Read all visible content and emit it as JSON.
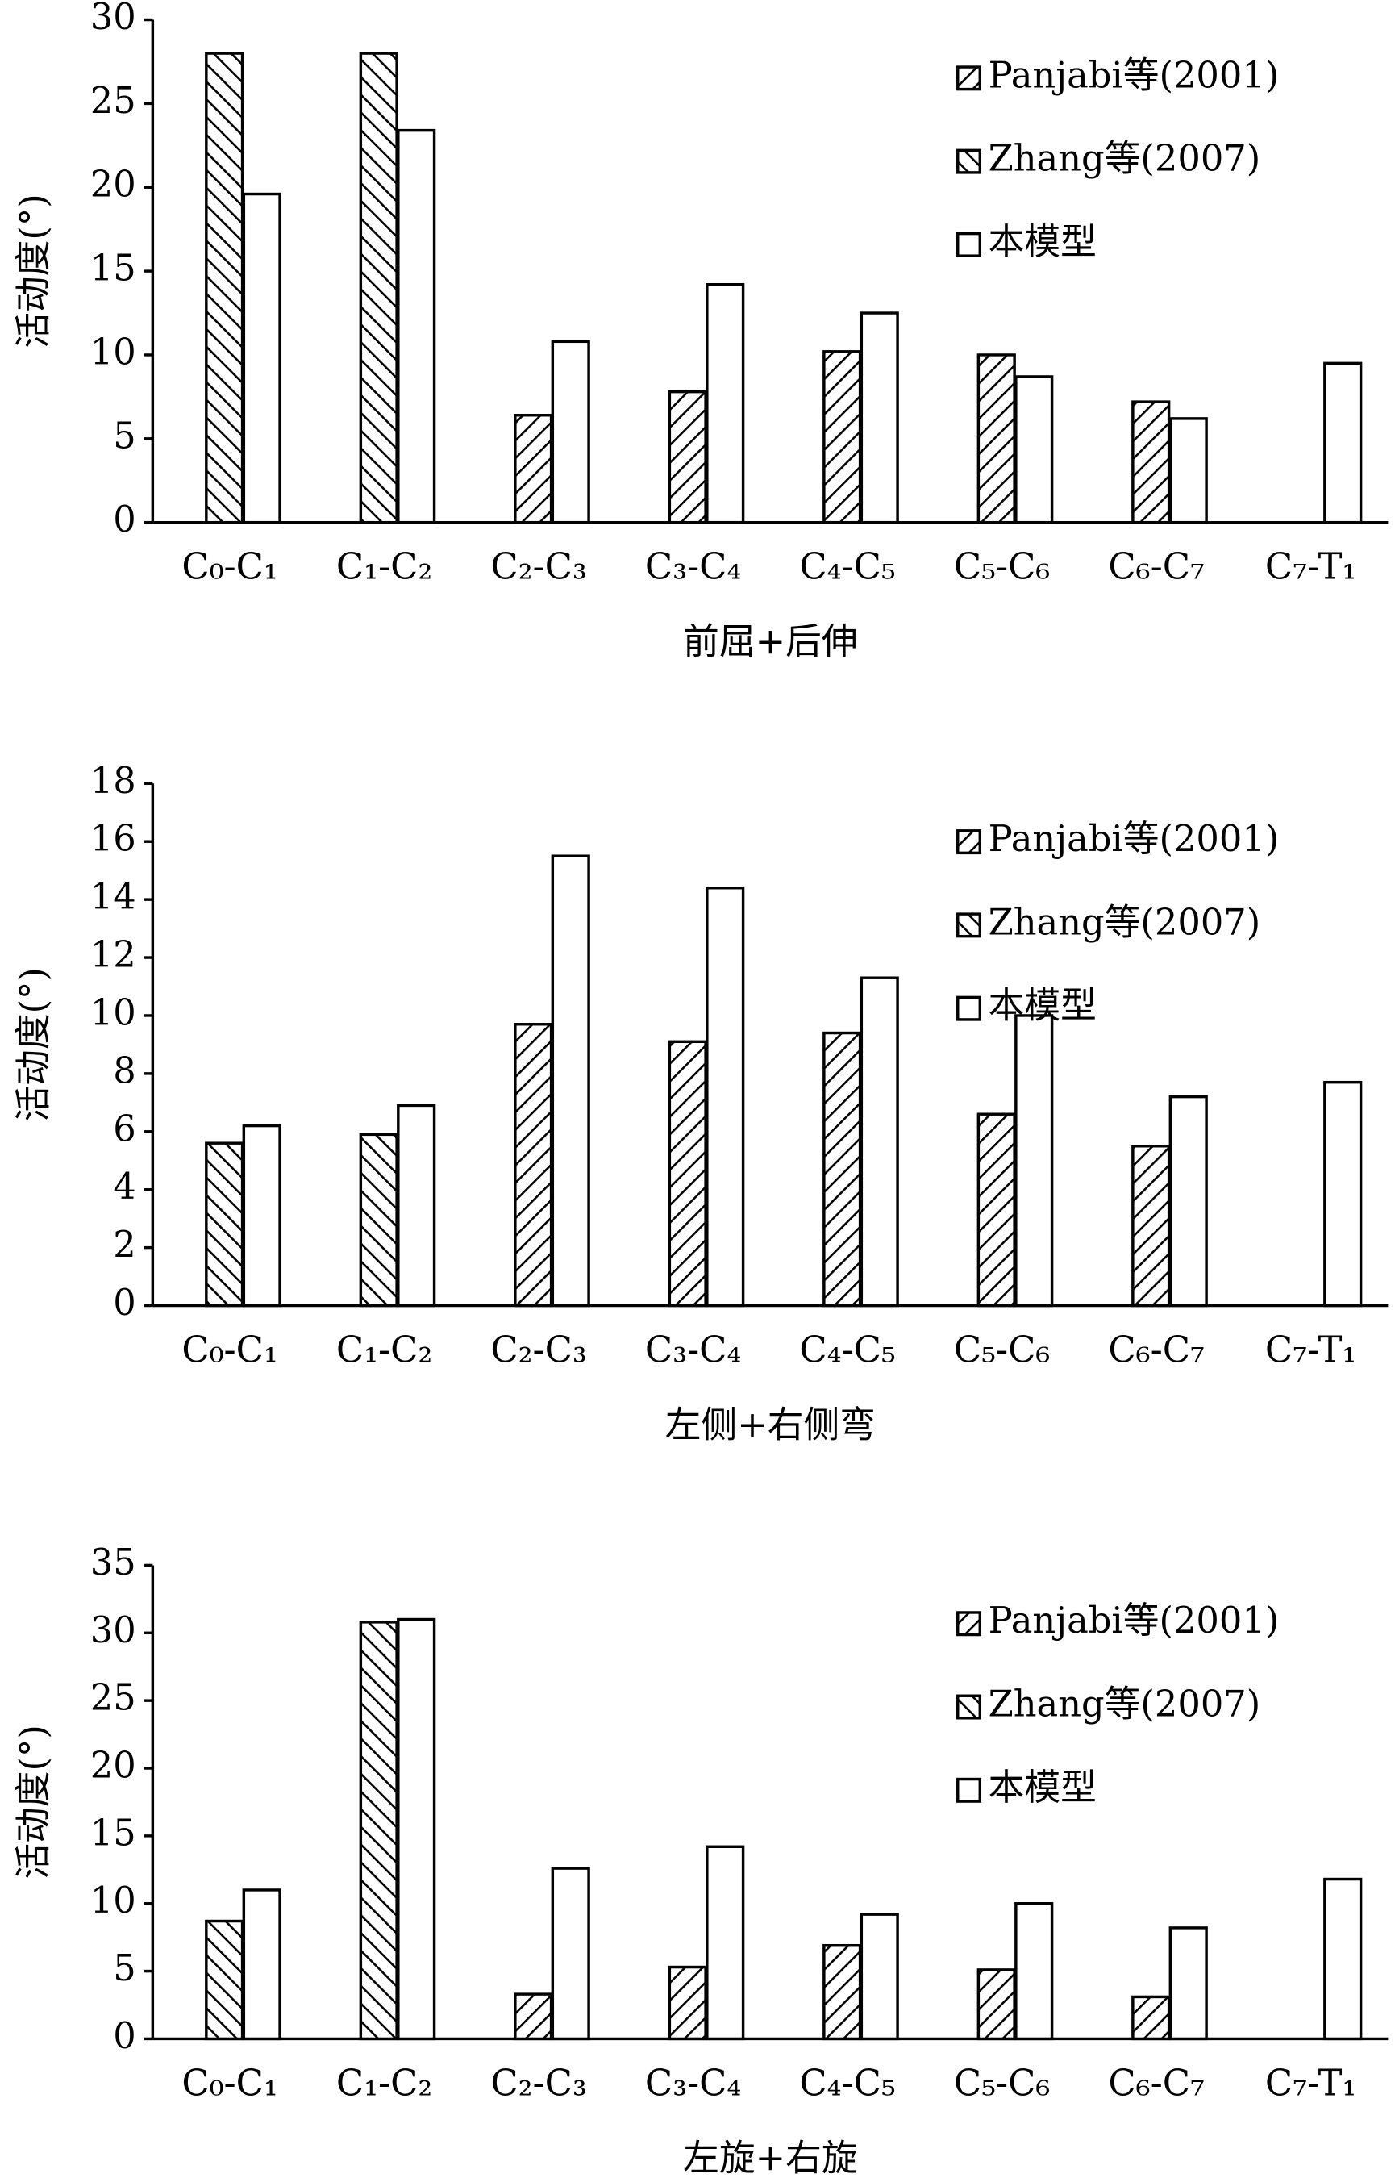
{
  "chart_data": [
    {
      "type": "bar",
      "xlabel": "前屈+后伸",
      "ylabel": "活动度(°)",
      "categories": [
        "C₀-C₁",
        "C₁-C₂",
        "C₂-C₃",
        "C₃-C₄",
        "C₄-C₅",
        "C₅-C₆",
        "C₆-C₇",
        "C₇-T₁"
      ],
      "series": [
        {
          "name": "Panjabi等(2001)",
          "color": "#000000",
          "hatch": "forward",
          "values": [
            null,
            null,
            6.4,
            7.8,
            10.2,
            10,
            7.2,
            null
          ]
        },
        {
          "name": "Zhang等(2007)",
          "color": "#000000",
          "hatch": "backward",
          "values": [
            28,
            28,
            null,
            null,
            null,
            null,
            null,
            null
          ]
        },
        {
          "name": "本模型",
          "color": "#000000",
          "hatch": "none",
          "values": [
            19.6,
            23.4,
            10.8,
            14.2,
            12.5,
            8.7,
            6.2,
            9.5
          ]
        }
      ],
      "ylim": [
        0,
        30
      ],
      "yticks": [
        0,
        5,
        10,
        15,
        20,
        25,
        30
      ],
      "legend": "upper right"
    },
    {
      "type": "bar",
      "xlabel": "左侧+右侧弯",
      "ylabel": "活动度(°)",
      "categories": [
        "C₀-C₁",
        "C₁-C₂",
        "C₂-C₃",
        "C₃-C₄",
        "C₄-C₅",
        "C₅-C₆",
        "C₆-C₇",
        "C₇-T₁"
      ],
      "series": [
        {
          "name": "Panjabi等(2001)",
          "color": "#000000",
          "hatch": "forward",
          "values": [
            null,
            null,
            9.7,
            9.1,
            9.4,
            6.6,
            5.5,
            null
          ]
        },
        {
          "name": "Zhang等(2007)",
          "color": "#000000",
          "hatch": "backward",
          "values": [
            5.6,
            5.9,
            null,
            null,
            null,
            null,
            null,
            null
          ]
        },
        {
          "name": "本模型",
          "color": "#000000",
          "hatch": "none",
          "values": [
            6.2,
            6.9,
            15.5,
            14.4,
            11.3,
            10,
            7.2,
            7.7
          ]
        }
      ],
      "ylim": [
        0,
        18
      ],
      "yticks": [
        0,
        2,
        4,
        6,
        8,
        10,
        12,
        14,
        16,
        18
      ],
      "legend": "upper right"
    },
    {
      "type": "bar",
      "xlabel": "左旋+右旋",
      "ylabel": "活动度(°)",
      "categories": [
        "C₀-C₁",
        "C₁-C₂",
        "C₂-C₃",
        "C₃-C₄",
        "C₄-C₅",
        "C₅-C₆",
        "C₆-C₇",
        "C₇-T₁"
      ],
      "series": [
        {
          "name": "Panjabi等(2001)",
          "color": "#000000",
          "hatch": "forward",
          "values": [
            null,
            null,
            3.3,
            5.3,
            6.9,
            5.1,
            3.1,
            null
          ]
        },
        {
          "name": "Zhang等(2007)",
          "color": "#000000",
          "hatch": "backward",
          "values": [
            8.7,
            30.8,
            null,
            null,
            null,
            null,
            null,
            null
          ]
        },
        {
          "name": "本模型",
          "color": "#000000",
          "hatch": "none",
          "values": [
            11,
            31,
            12.6,
            14.2,
            9.2,
            10,
            8.2,
            11.8
          ]
        }
      ],
      "ylim": [
        0,
        35
      ],
      "yticks": [
        0,
        5,
        10,
        15,
        20,
        25,
        30,
        35
      ],
      "legend": "upper right"
    }
  ]
}
